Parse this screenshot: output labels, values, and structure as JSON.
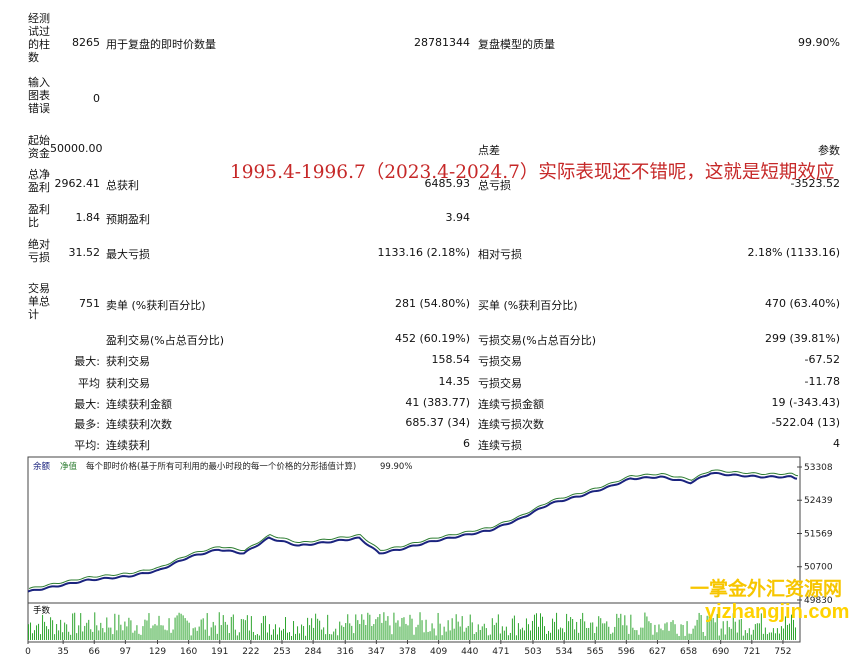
{
  "report": {
    "bars_tested": {
      "label": "经测试过的柱数",
      "value": "8265"
    },
    "ticks_modelled": {
      "label": "用于复盘的即时价数量",
      "value": "28781344"
    },
    "model_quality": {
      "label": "复盘模型的质量",
      "value": "99.90%"
    },
    "mismatched_errors": {
      "label": "输入图表错误",
      "value": "0"
    },
    "initial_deposit": {
      "label": "起始资金",
      "value": "50000.00"
    },
    "spread": {
      "label": "点差",
      "value": "参数"
    },
    "net_profit": {
      "label": "总净盈利",
      "value": "2962.41"
    },
    "gross_profit": {
      "label": "总获利",
      "value": "6485.93"
    },
    "gross_loss": {
      "label": "总亏损",
      "value": "-3523.52"
    },
    "profit_factor": {
      "label": "盈利比",
      "value": "1.84"
    },
    "expected_payoff": {
      "label": "预期盈利",
      "value": "3.94"
    },
    "abs_drawdown": {
      "label": "绝对亏损",
      "value": "31.52"
    },
    "max_drawdown": {
      "label": "最大亏损",
      "value": "1133.16 (2.18%)"
    },
    "rel_drawdown": {
      "label": "相对亏损",
      "value": "2.18% (1133.16)"
    },
    "total_trades": {
      "label": "交易单总计",
      "value": "751"
    },
    "short_positions": {
      "label": "卖单 (%获利百分比)",
      "value": "281 (54.80%)"
    },
    "long_positions": {
      "label": "买单 (%获利百分比)",
      "value": "470 (63.40%)"
    },
    "profit_trades": {
      "label": "盈利交易(%占总百分比)",
      "value": "452 (60.19%)"
    },
    "loss_trades": {
      "label": "亏损交易(%占总百分比)",
      "value": "299 (39.81%)"
    },
    "rows": [
      {
        "prefix": "最大:",
        "l_label": "获利交易",
        "l_value": "158.54",
        "r_label": "亏损交易",
        "r_value": "-67.52"
      },
      {
        "prefix": "平均",
        "l_label": "获利交易",
        "l_value": "14.35",
        "r_label": "亏损交易",
        "r_value": "-11.78"
      },
      {
        "prefix": "最大:",
        "l_label": "连续获利金额",
        "l_value": "41 (383.77)",
        "r_label": "连续亏损金额",
        "r_value": "19 (-343.43)"
      },
      {
        "prefix": "最多:",
        "l_label": "连续获利次数",
        "l_value": "685.37 (34)",
        "r_label": "连续亏损次数",
        "r_value": "-522.04 (13)"
      },
      {
        "prefix": "平均:",
        "l_label": "连续获利",
        "l_value": "6",
        "r_label": "连续亏损",
        "r_value": "4"
      }
    ]
  },
  "annotation": "1995.4-1996.7（2023.4-2024.7）实际表现还不错呢，这就是短期效应",
  "watermark": {
    "cn": "一掌金外汇资源网",
    "url": "yizhangjin.com"
  },
  "chart_data": {
    "type": "line",
    "legend": {
      "balance": "余额",
      "equity": "净值",
      "desc": "每个即时价格(基于所有可利用的最小时段的每一个价格的分形插值计算)",
      "quality": "99.90%"
    },
    "yticks": [
      "53308",
      "52439",
      "51569",
      "50700",
      "49830"
    ],
    "xticks": [
      "0",
      "35",
      "66",
      "97",
      "129",
      "160",
      "191",
      "222",
      "253",
      "284",
      "316",
      "347",
      "378",
      "409",
      "440",
      "471",
      "503",
      "534",
      "565",
      "596",
      "627",
      "658",
      "690",
      "721",
      "752"
    ],
    "lots_label": "手数",
    "ylim": [
      49830,
      53308
    ],
    "xlim": [
      0,
      766
    ],
    "balance_points": [
      [
        0,
        50050
      ],
      [
        30,
        50200
      ],
      [
        60,
        50350
      ],
      [
        100,
        50450
      ],
      [
        130,
        50600
      ],
      [
        160,
        50950
      ],
      [
        190,
        51150
      ],
      [
        215,
        51050
      ],
      [
        240,
        51450
      ],
      [
        270,
        51250
      ],
      [
        300,
        51350
      ],
      [
        330,
        51450
      ],
      [
        350,
        51050
      ],
      [
        370,
        51150
      ],
      [
        400,
        51350
      ],
      [
        430,
        51500
      ],
      [
        460,
        51650
      ],
      [
        490,
        51950
      ],
      [
        520,
        52350
      ],
      [
        550,
        52550
      ],
      [
        580,
        52800
      ],
      [
        600,
        53000
      ],
      [
        630,
        53050
      ],
      [
        650,
        52950
      ],
      [
        660,
        52900
      ],
      [
        680,
        53150
      ],
      [
        700,
        53100
      ],
      [
        730,
        53050
      ],
      [
        760,
        53050
      ],
      [
        766,
        53000
      ]
    ],
    "colors": {
      "balance": "#1a237e",
      "equity": "#2e7d32",
      "lots": "#2ea52e"
    }
  }
}
